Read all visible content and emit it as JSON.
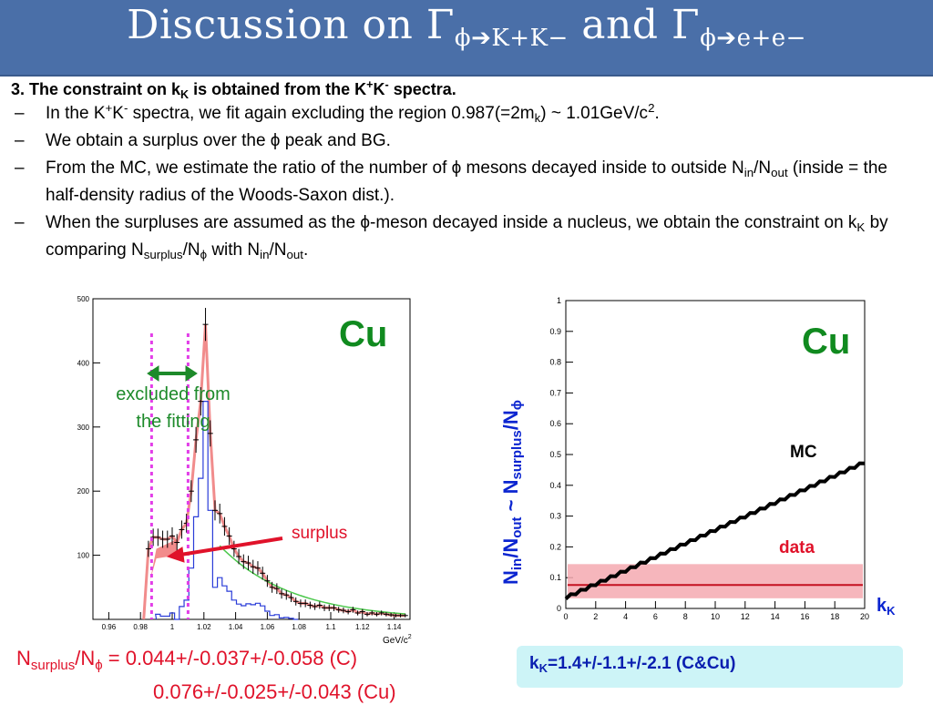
{
  "title": {
    "text_main": "Discussion on Γ",
    "sub1": "ϕ➔K+K−",
    "text_and": " and Γ",
    "sub2": "ϕ➔e+e−"
  },
  "slide": {
    "heading": {
      "a": "3. The constraint on k",
      "a_sub": "K",
      "b": " is obtained from the K",
      "b_sup1": "+",
      "c": "K",
      "c_sup": "-",
      "d": " spectra."
    },
    "bullets": [
      {
        "dash": "–",
        "p1": "In the K",
        "s1": "+",
        "p2": "K",
        "s2": "-",
        "p3": " spectra, we fit again excluding the region 0.987(=2m",
        "sub": "k",
        "p4": ") ~ 1.01GeV/c",
        "sup": "2",
        "p5": "."
      },
      {
        "dash": "–",
        "text": "We obtain a surplus over the ϕ peak and BG."
      },
      {
        "dash": "–",
        "p1": "From the MC, we estimate the ratio of the number of ϕ mesons decayed inside to outside N",
        "s1": "in",
        "p2": "/N",
        "s2": "out",
        "p3": "  (inside = the half-density radius of the Woods-Saxon dist.)."
      },
      {
        "dash": "–",
        "p1": "When the surpluses are assumed as the ϕ-meson decayed inside a nucleus, we obtain the constraint on k",
        "s1": "K",
        "p2": " by comparing N",
        "s2": "surplus",
        "p3": "/N",
        "s3": "ϕ",
        "p4": " with N",
        "s4": "in",
        "p5": "/N",
        "s5": "out",
        "p6": "."
      }
    ]
  },
  "left_plot": {
    "label_cu": "Cu",
    "excluded_l1": "excluded from",
    "excluded_l2": "the fitting",
    "surplus": "surplus",
    "xunit": "GeV/c",
    "xunit_sup": "2"
  },
  "right_plot": {
    "label_cu": "Cu",
    "mc": "MC",
    "data": "data",
    "xlabel": "k",
    "xlabel_sub": "K",
    "ylabel": {
      "n1": "N",
      "s1": "in",
      "n2": "/N",
      "s2": "out",
      "tilde": "   ~ N",
      "s3": "surplus",
      "n3": "/N",
      "s4": "ϕ"
    }
  },
  "ratio": {
    "lhs_n": "N",
    "lhs_s1": "surplus",
    "lhs_slash": "/N",
    "lhs_s2": "ϕ",
    "line1": " = 0.044+/-0.037+/-0.058 (C)",
    "line2": "0.076+/-0.025+/-0.043 (Cu)"
  },
  "result": {
    "k": "k",
    "k_sub": "K",
    "value": "=1.4+/-1.1+/-2.1 (C&Cu)"
  },
  "chart_data": [
    {
      "type": "scatter",
      "title": "",
      "xunit": "GeV/c2",
      "xlim": [
        0.95,
        1.15
      ],
      "ylim": [
        0,
        500
      ],
      "xticks": [
        "0.96",
        "0.98",
        "1",
        "1.02",
        "1.04",
        "1.06",
        "1.08",
        "1.1",
        "1.12",
        "1.14"
      ],
      "yticks": [
        "100",
        "200",
        "300",
        "400",
        "500"
      ],
      "excluded_region": [
        0.987,
        1.01
      ],
      "series": [
        {
          "x": [
            0.982,
            0.985,
            0.988,
            0.991,
            0.994,
            0.997,
            1.0,
            1.003,
            1.006,
            1.009,
            1.012,
            1.015,
            1.018,
            1.021,
            1.024,
            1.027,
            1.03,
            1.033,
            1.036,
            1.039,
            1.042,
            1.045,
            1.048,
            1.051,
            1.054,
            1.057,
            1.06,
            1.063,
            1.066,
            1.069,
            1.072,
            1.075,
            1.078,
            1.081,
            1.084,
            1.087,
            1.09,
            1.093,
            1.096,
            1.099,
            1.102,
            1.105,
            1.108,
            1.111,
            1.114,
            1.117,
            1.12,
            1.123,
            1.126,
            1.129,
            1.132,
            1.135,
            1.138,
            1.141,
            1.144,
            1.147
          ],
          "values": [
            0,
            110,
            128,
            128,
            125,
            125,
            130,
            120,
            140,
            150,
            200,
            280,
            340,
            460,
            290,
            170,
            165,
            145,
            130,
            110,
            98,
            90,
            88,
            82,
            80,
            72,
            60,
            50,
            48,
            40,
            38,
            34,
            28,
            25,
            25,
            22,
            20,
            22,
            18,
            18,
            18,
            15,
            14,
            12,
            15,
            10,
            12,
            8,
            10,
            8,
            10,
            8,
            7,
            6,
            6,
            6
          ]
        }
      ]
    },
    {
      "type": "line",
      "xlim": [
        0,
        20
      ],
      "ylim": [
        0,
        1
      ],
      "xticks": [
        "0",
        "2",
        "4",
        "6",
        "8",
        "10",
        "12",
        "14",
        "16",
        "18",
        "20"
      ],
      "yticks": [
        "0",
        "0.1",
        "0.2",
        "0.3",
        "0.4",
        "0.5",
        "0.6",
        "0.7",
        "0.8",
        "0.9",
        "1"
      ],
      "series": [
        {
          "name": "MC",
          "x": [
            0,
            20
          ],
          "values": [
            0.035,
            0.475
          ]
        },
        {
          "name": "data",
          "x": [
            0,
            20
          ],
          "values": [
            0.076,
            0.076
          ],
          "band": [
            0.033,
            0.144
          ]
        }
      ]
    }
  ]
}
